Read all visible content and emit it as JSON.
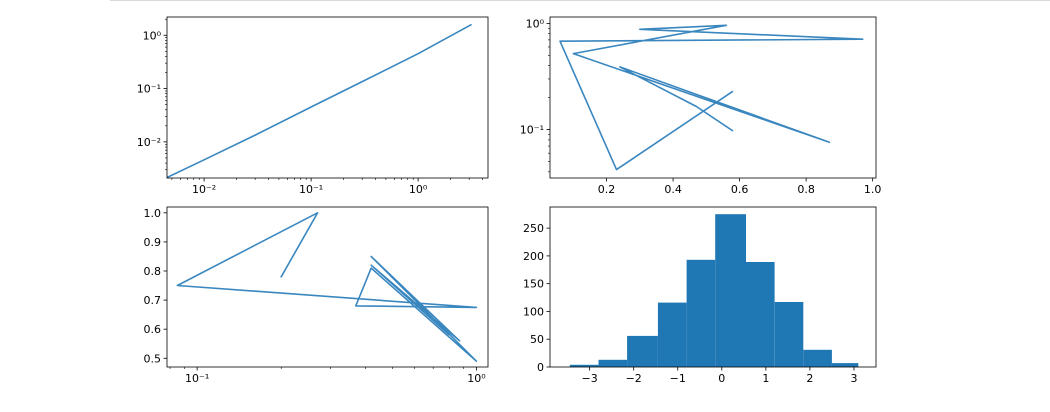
{
  "chart_data": [
    {
      "type": "line",
      "xscale": "log",
      "yscale": "log",
      "xlim": [
        0.0045,
        4.5
      ],
      "ylim": [
        0.0021,
        2.2
      ],
      "xticks": [
        {
          "value": 0.01,
          "label": "10⁻²"
        },
        {
          "value": 0.1,
          "label": "10⁻¹"
        },
        {
          "value": 1,
          "label": "10⁰"
        }
      ],
      "yticks": [
        {
          "value": 0.01,
          "label": "10⁻²"
        },
        {
          "value": 0.1,
          "label": "10⁻¹"
        },
        {
          "value": 1,
          "label": "10⁰"
        }
      ],
      "series": [
        {
          "x": [
            0.0045,
            0.01,
            0.03,
            0.1,
            0.3,
            1,
            3.16
          ],
          "y": [
            0.00215,
            0.0046,
            0.0134,
            0.045,
            0.135,
            0.45,
            1.6
          ]
        }
      ],
      "title": "",
      "xlabel": "",
      "ylabel": "",
      "grid": false
    },
    {
      "type": "line",
      "xscale": "linear",
      "yscale": "log",
      "xlim": [
        0.03,
        1.01
      ],
      "ylim": [
        0.035,
        1.15
      ],
      "xticks": [
        {
          "value": 0.2,
          "label": "0.2"
        },
        {
          "value": 0.4,
          "label": "0.4"
        },
        {
          "value": 0.6,
          "label": "0.6"
        },
        {
          "value": 0.8,
          "label": "0.8"
        },
        {
          "value": 1.0,
          "label": "1.0"
        }
      ],
      "yticks": [
        {
          "value": 0.1,
          "label": "10⁻¹"
        },
        {
          "value": 1,
          "label": "10⁰"
        }
      ],
      "series": [
        {
          "x": [
            0.58,
            0.47,
            0.24,
            0.87,
            0.1,
            0.56,
            0.3,
            0.97,
            0.06,
            0.23,
            0.58
          ],
          "y": [
            0.097,
            0.165,
            0.39,
            0.076,
            0.52,
            0.96,
            0.88,
            0.71,
            0.68,
            0.042,
            0.23
          ]
        }
      ],
      "title": "",
      "xlabel": "",
      "ylabel": "",
      "grid": false
    },
    {
      "type": "line",
      "xscale": "log",
      "yscale": "linear",
      "xlim": [
        0.078,
        1.1
      ],
      "ylim": [
        0.47,
        1.02
      ],
      "xticks": [
        {
          "value": 0.1,
          "label": "10⁻¹"
        },
        {
          "value": 1,
          "label": "10⁰"
        }
      ],
      "yticks": [
        {
          "value": 0.5,
          "label": "0.5"
        },
        {
          "value": 0.6,
          "label": "0.6"
        },
        {
          "value": 0.7,
          "label": "0.7"
        },
        {
          "value": 0.8,
          "label": "0.8"
        },
        {
          "value": 0.9,
          "label": "0.9"
        },
        {
          "value": 1.0,
          "label": "1.0"
        }
      ],
      "series": [
        {
          "x": [
            0.8,
            0.42,
            0.87,
            0.42,
            1.0,
            0.42,
            0.37,
            1.0,
            0.085,
            0.27,
            0.2,
            0.27
          ],
          "y": [
            0.58,
            0.82,
            0.56,
            0.85,
            0.49,
            0.81,
            0.68,
            0.675,
            0.75,
            1.0,
            0.78,
            1.0
          ]
        }
      ],
      "title": "",
      "xlabel": "",
      "ylabel": "",
      "grid": false
    },
    {
      "type": "bar",
      "subtype": "histogram",
      "xlim": [
        -3.9,
        3.5
      ],
      "ylim": [
        0,
        288
      ],
      "bin_edges": [
        -3.45,
        -2.8,
        -2.15,
        -1.45,
        -0.8,
        -0.15,
        0.55,
        1.2,
        1.85,
        2.5,
        3.1
      ],
      "counts": [
        4,
        13,
        56,
        116,
        193,
        275,
        189,
        117,
        31,
        7
      ],
      "xticks": [
        {
          "value": -3,
          "label": "−3"
        },
        {
          "value": -2,
          "label": "−2"
        },
        {
          "value": -1,
          "label": "−1"
        },
        {
          "value": 0,
          "label": "0"
        },
        {
          "value": 1,
          "label": "1"
        },
        {
          "value": 2,
          "label": "2"
        },
        {
          "value": 3,
          "label": "3"
        }
      ],
      "yticks": [
        {
          "value": 0,
          "label": "0"
        },
        {
          "value": 50,
          "label": "50"
        },
        {
          "value": 100,
          "label": "100"
        },
        {
          "value": 150,
          "label": "150"
        },
        {
          "value": 200,
          "label": "200"
        },
        {
          "value": 250,
          "label": "250"
        }
      ],
      "title": "",
      "xlabel": "",
      "ylabel": "",
      "grid": false
    }
  ],
  "colors": {
    "series": "#3a87c0",
    "bar": "#1f77b4",
    "axes": "#000000",
    "rule": "#d9d9d9"
  }
}
